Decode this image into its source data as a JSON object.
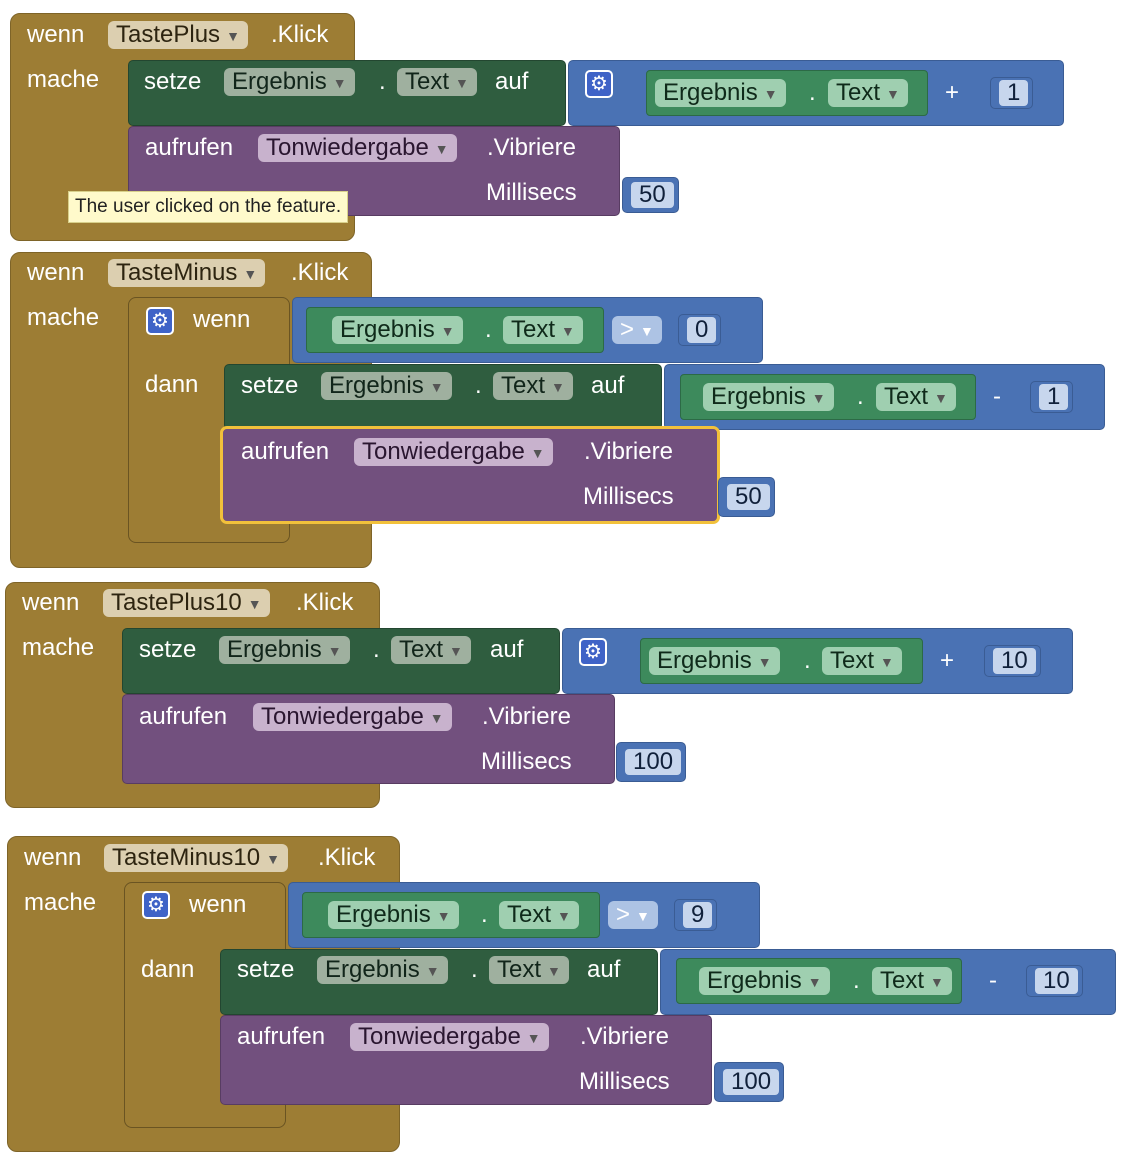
{
  "words": {
    "when": "wenn",
    "do": "mache",
    "then": "dann",
    "set": "setze",
    "to": "auf",
    "call": "aufrufen",
    "dot": ".",
    "click": ".Klick",
    "vibrate": ".Vibriere",
    "millisecs": "Millisecs"
  },
  "components": {
    "result": "Ergebnis",
    "text_prop": "Text",
    "sound": "Tonwiedergabe"
  },
  "events": [
    {
      "button": "TastePlus",
      "op": "+",
      "amount": "1",
      "millisecs": "50"
    },
    {
      "button": "TasteMinus",
      "compare_op": ">",
      "compare_value": "0",
      "op": "-",
      "amount": "1",
      "millisecs": "50"
    },
    {
      "button": "TastePlus10",
      "op": "+",
      "amount": "10",
      "millisecs": "100"
    },
    {
      "button": "TasteMinus10",
      "compare_op": ">",
      "compare_value": "9",
      "op": "-",
      "amount": "10",
      "millisecs": "100"
    }
  ],
  "tooltip": "The user clicked on the feature.",
  "icons": {
    "mutator": "gear-icon",
    "dropdown": "dropdown-arrow-icon"
  },
  "colors": {
    "event_block": "#9d7d34",
    "setter_block": "#2f5d3f",
    "method_call_block": "#72507e",
    "math_block": "#4a72b4",
    "getter_block": "#3d8a5c",
    "selected_outline": "#f2c13b"
  }
}
